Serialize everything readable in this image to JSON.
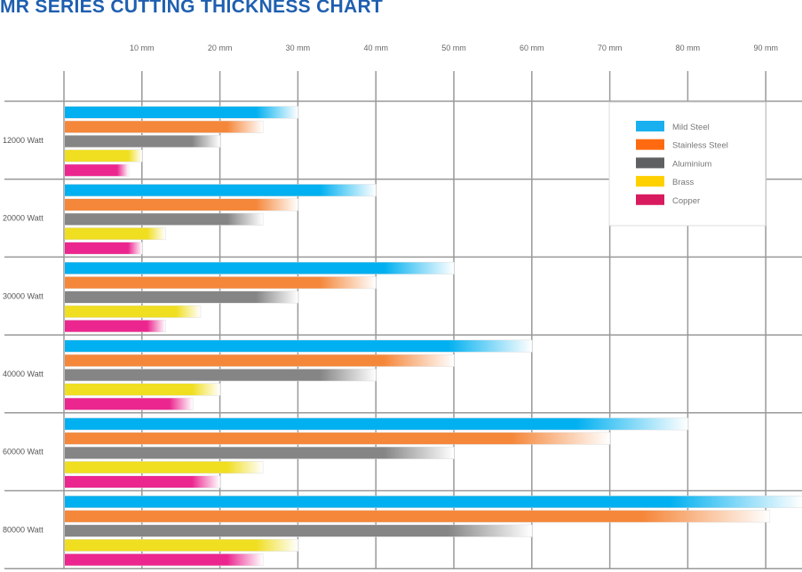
{
  "chart_data": {
    "type": "bar",
    "orientation": "horizontal",
    "title": "MR SERIES CUTTING THICKNESS CHART",
    "xlabel": "",
    "ylabel": "",
    "xlim": [
      0,
      95
    ],
    "grid": true,
    "legend_position": "top-right",
    "xticks": [
      {
        "value": 10,
        "label": "10 mm"
      },
      {
        "value": 20,
        "label": "20 mm"
      },
      {
        "value": 30,
        "label": "30 mm"
      },
      {
        "value": 40,
        "label": "40 mm"
      },
      {
        "value": 50,
        "label": "50 mm"
      },
      {
        "value": 60,
        "label": "60 mm"
      },
      {
        "value": 70,
        "label": "70 mm"
      },
      {
        "value": 80,
        "label": "80 mm"
      },
      {
        "value": 90,
        "label": "90 mm"
      }
    ],
    "categories": [
      "12000 Watt",
      "20000 Watt",
      "30000 Watt",
      "40000 Watt",
      "60000 Watt",
      "80000 Watt"
    ],
    "series": [
      {
        "name": "Mild Steel",
        "color": "#00b0f0",
        "legend_color": "#1ab0f0",
        "values": [
          30,
          40,
          50,
          60,
          80,
          95
        ]
      },
      {
        "name": "Stainless Steel",
        "color": "#f5873a",
        "legend_color": "#ff6a10",
        "values": [
          25.5,
          30,
          40,
          50,
          70,
          90.5
        ]
      },
      {
        "name": "Aluminium",
        "color": "#858585",
        "legend_color": "#5f6062",
        "values": [
          20,
          25.5,
          30,
          40,
          50,
          60
        ]
      },
      {
        "name": "Brass",
        "color": "#f0de20",
        "legend_color": "#ffd000",
        "values": [
          10,
          13,
          17.5,
          20,
          25.5,
          30
        ]
      },
      {
        "name": "Copper",
        "color": "#ec268f",
        "legend_color": "#d81b5e",
        "values": [
          8.3,
          10,
          13,
          16.5,
          20,
          25.5
        ]
      }
    ]
  }
}
